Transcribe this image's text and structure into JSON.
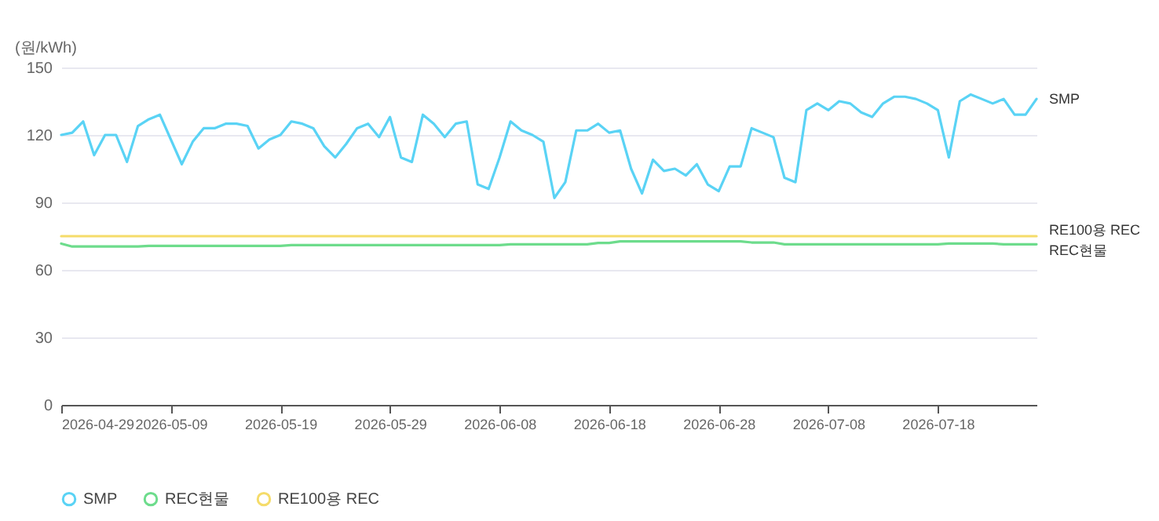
{
  "chart_data": {
    "type": "line",
    "ylabel": "(원/kWh)",
    "x": [
      "2026-04-29",
      "2026-04-30",
      "2026-05-01",
      "2026-05-02",
      "2026-05-03",
      "2026-05-04",
      "2026-05-05",
      "2026-05-06",
      "2026-05-07",
      "2026-05-08",
      "2026-05-09",
      "2026-05-10",
      "2026-05-11",
      "2026-05-12",
      "2026-05-13",
      "2026-05-14",
      "2026-05-15",
      "2026-05-16",
      "2026-05-17",
      "2026-05-18",
      "2026-05-19",
      "2026-05-20",
      "2026-05-21",
      "2026-05-22",
      "2026-05-23",
      "2026-05-24",
      "2026-05-25",
      "2026-05-26",
      "2026-05-27",
      "2026-05-28",
      "2026-05-29",
      "2026-05-30",
      "2026-05-31",
      "2026-06-01",
      "2026-06-02",
      "2026-06-03",
      "2026-06-04",
      "2026-06-05",
      "2026-06-06",
      "2026-06-07",
      "2026-06-08",
      "2026-06-09",
      "2026-06-10",
      "2026-06-11",
      "2026-06-12",
      "2026-06-13",
      "2026-06-14",
      "2026-06-15",
      "2026-06-16",
      "2026-06-17",
      "2026-06-18",
      "2026-06-19",
      "2026-06-20",
      "2026-06-21",
      "2026-06-22",
      "2026-06-23",
      "2026-06-24",
      "2026-06-25",
      "2026-06-26",
      "2026-06-27",
      "2026-06-28",
      "2026-06-29",
      "2026-06-30",
      "2026-07-01",
      "2026-07-02",
      "2026-07-03",
      "2026-07-04",
      "2026-07-05",
      "2026-07-06",
      "2026-07-07",
      "2026-07-08",
      "2026-07-09",
      "2026-07-10",
      "2026-07-11",
      "2026-07-12",
      "2026-07-13",
      "2026-07-14",
      "2026-07-15",
      "2026-07-16",
      "2026-07-17",
      "2026-07-18",
      "2026-07-19",
      "2026-07-20",
      "2026-07-21",
      "2026-07-22",
      "2026-07-23",
      "2026-07-24",
      "2026-07-25",
      "2026-07-26",
      "2026-07-27"
    ],
    "series": [
      {
        "name": "SMP",
        "color": "#5ad3f5",
        "values": [
          120,
          121,
          126,
          111,
          120,
          120,
          108,
          124,
          127,
          129,
          118,
          107,
          117,
          123,
          123,
          125,
          125,
          124,
          114,
          118,
          120,
          126,
          125,
          123,
          115,
          110,
          116,
          123,
          125,
          119,
          128,
          110,
          108,
          129,
          125,
          119,
          125,
          126,
          98,
          96,
          110,
          126,
          122,
          120,
          117,
          92,
          99,
          122,
          122,
          125,
          121,
          122,
          105,
          94,
          109,
          104,
          105,
          102,
          107,
          98,
          95,
          106,
          106,
          123,
          121,
          119,
          101,
          99,
          131,
          134,
          131,
          135,
          134,
          130,
          128,
          134,
          137,
          137,
          136,
          134,
          131,
          110,
          135,
          138,
          136,
          134,
          136,
          129,
          129,
          136
        ]
      },
      {
        "name": "REC현물",
        "color": "#6ddc8c",
        "values": [
          71.7,
          70.4,
          70.4,
          70.4,
          70.4,
          70.4,
          70.4,
          70.4,
          70.7,
          70.7,
          70.7,
          70.7,
          70.7,
          70.7,
          70.7,
          70.7,
          70.7,
          70.7,
          70.7,
          70.7,
          70.7,
          71,
          71,
          71,
          71,
          71,
          71,
          71,
          71,
          71,
          71,
          71,
          71,
          71,
          71,
          71,
          71,
          71,
          71,
          71,
          71,
          71.4,
          71.4,
          71.4,
          71.4,
          71.4,
          71.4,
          71.4,
          71.4,
          72,
          72,
          72.7,
          72.7,
          72.7,
          72.7,
          72.7,
          72.7,
          72.7,
          72.7,
          72.7,
          72.7,
          72.7,
          72.7,
          72.2,
          72.2,
          72.2,
          71.4,
          71.4,
          71.4,
          71.4,
          71.4,
          71.4,
          71.4,
          71.4,
          71.4,
          71.4,
          71.4,
          71.4,
          71.4,
          71.4,
          71.4,
          71.7,
          71.7,
          71.7,
          71.7,
          71.7,
          71.4,
          71.4,
          71.4,
          71.4
        ]
      },
      {
        "name": "RE100용 REC",
        "color": "#f5dc6a",
        "values": [
          75,
          75,
          75,
          75,
          75,
          75,
          75,
          75,
          75,
          75,
          75,
          75,
          75,
          75,
          75,
          75,
          75,
          75,
          75,
          75,
          75,
          75,
          75,
          75,
          75,
          75,
          75,
          75,
          75,
          75,
          75,
          75,
          75,
          75,
          75,
          75,
          75,
          75,
          75,
          75,
          75,
          75,
          75,
          75,
          75,
          75,
          75,
          75,
          75,
          75,
          75,
          75,
          75,
          75,
          75,
          75,
          75,
          75,
          75,
          75,
          75,
          75,
          75,
          75,
          75,
          75,
          75,
          75,
          75,
          75,
          75,
          75,
          75,
          75,
          75,
          75,
          75,
          75,
          75,
          75,
          75,
          75,
          75,
          75,
          75,
          75,
          75,
          75,
          75,
          75
        ]
      }
    ],
    "xlim": [
      "2026-04-29",
      "2026-07-27"
    ],
    "xticks": [
      "2026-04-29",
      "2026-05-09",
      "2026-05-19",
      "2026-05-29",
      "2026-06-08",
      "2026-06-18",
      "2026-06-28",
      "2026-07-08",
      "2026-07-18"
    ],
    "ylim": [
      0,
      150
    ],
    "yticks": [
      0,
      30,
      60,
      90,
      120,
      150
    ],
    "grid": "y",
    "legend": "bottom",
    "line_style": "solid"
  }
}
